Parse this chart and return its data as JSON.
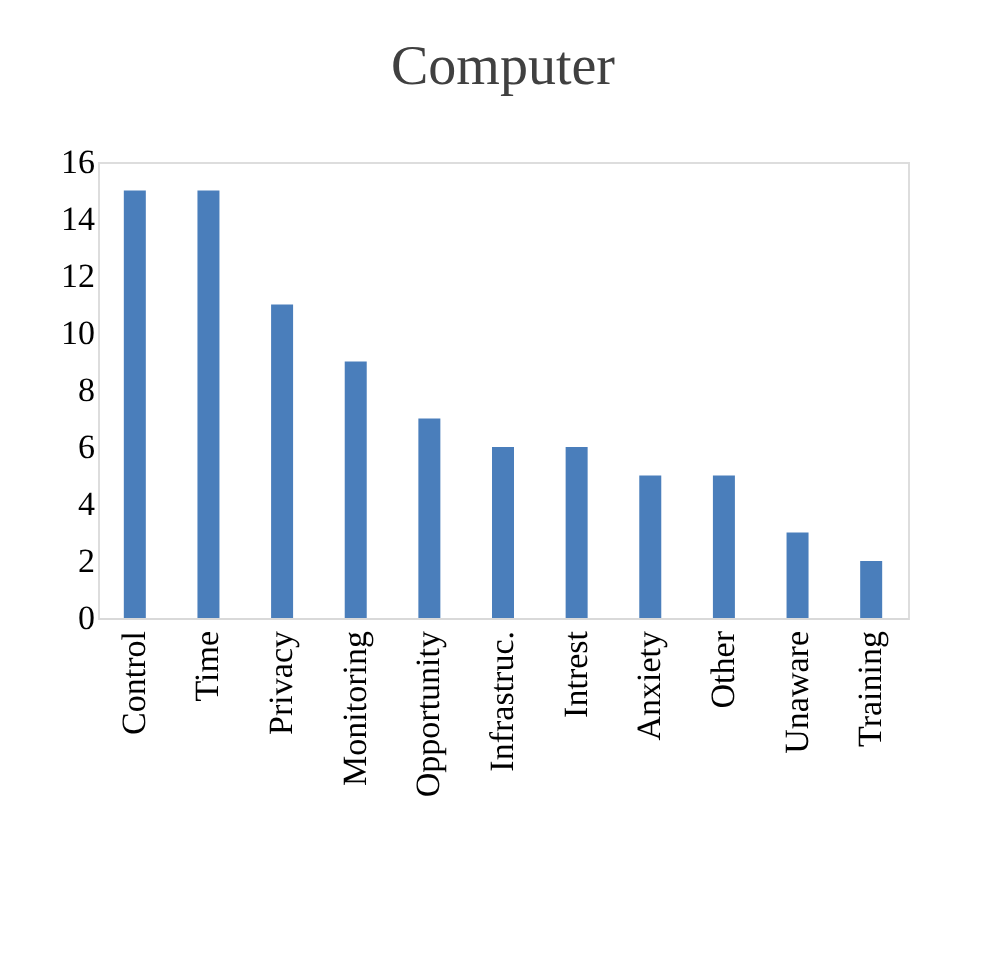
{
  "chart_data": {
    "type": "bar",
    "title": "Computer",
    "categories": [
      "Control",
      "Time",
      "Privacy",
      "Monitoring",
      "Opportunity",
      "Infrastruc.",
      "Intrest",
      "Anxiety",
      "Other",
      "Unaware",
      "Training"
    ],
    "values": [
      15,
      15,
      11,
      9,
      7,
      6,
      6,
      5,
      5,
      3,
      2
    ],
    "color": "#4a7ebb",
    "ylim": [
      0,
      16
    ],
    "yticks": [
      0,
      2,
      4,
      6,
      8,
      10,
      12,
      14,
      16
    ]
  }
}
